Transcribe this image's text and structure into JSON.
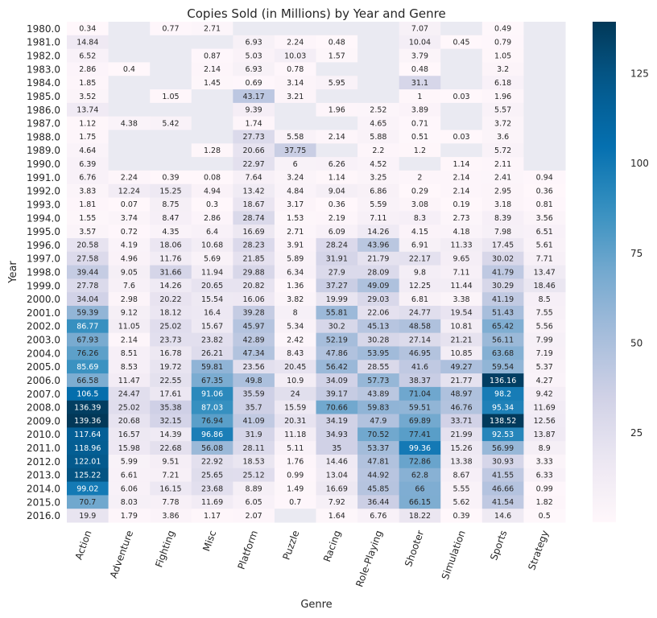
{
  "chart_data": {
    "type": "heatmap",
    "title": "Copies Sold (in Millions) by Year and Genre",
    "xlabel": "Genre",
    "ylabel": "Year",
    "x": [
      "Action",
      "Adventure",
      "Fighting",
      "Misc",
      "Platform",
      "Puzzle",
      "Racing",
      "Role-Playing",
      "Shooter",
      "Simulation",
      "Sports",
      "Strategy"
    ],
    "y": [
      "1980.0",
      "1981.0",
      "1982.0",
      "1983.0",
      "1984.0",
      "1985.0",
      "1986.0",
      "1987.0",
      "1988.0",
      "1989.0",
      "1990.0",
      "1991.0",
      "1992.0",
      "1993.0",
      "1994.0",
      "1995.0",
      "1996.0",
      "1997.0",
      "1998.0",
      "1999.0",
      "2000.0",
      "2001.0",
      "2002.0",
      "2003.0",
      "2004.0",
      "2005.0",
      "2006.0",
      "2007.0",
      "2008.0",
      "2009.0",
      "2010.0",
      "2011.0",
      "2012.0",
      "2013.0",
      "2014.0",
      "2015.0",
      "2016.0"
    ],
    "values": [
      [
        "0.34",
        null,
        "0.77",
        "2.71",
        null,
        null,
        null,
        null,
        "7.07",
        null,
        "0.49",
        null
      ],
      [
        "14.84",
        null,
        null,
        null,
        "6.93",
        "2.24",
        "0.48",
        null,
        "10.04",
        "0.45",
        "0.79",
        null
      ],
      [
        "6.52",
        null,
        null,
        "0.87",
        "5.03",
        "10.03",
        "1.57",
        null,
        "3.79",
        null,
        "1.05",
        null
      ],
      [
        "2.86",
        "0.4",
        null,
        "2.14",
        "6.93",
        "0.78",
        null,
        null,
        "0.48",
        null,
        "3.2",
        null
      ],
      [
        "1.85",
        null,
        null,
        "1.45",
        "0.69",
        "3.14",
        "5.95",
        null,
        "31.1",
        null,
        "6.18",
        null
      ],
      [
        "3.52",
        null,
        "1.05",
        null,
        "43.17",
        "3.21",
        null,
        null,
        "1",
        "0.03",
        "1.96",
        null
      ],
      [
        "13.74",
        null,
        null,
        null,
        "9.39",
        null,
        "1.96",
        "2.52",
        "3.89",
        null,
        "5.57",
        null
      ],
      [
        "1.12",
        "4.38",
        "5.42",
        null,
        "1.74",
        null,
        null,
        "4.65",
        "0.71",
        null,
        "3.72",
        null
      ],
      [
        "1.75",
        null,
        null,
        null,
        "27.73",
        "5.58",
        "2.14",
        "5.88",
        "0.51",
        "0.03",
        "3.6",
        null
      ],
      [
        "4.64",
        null,
        null,
        "1.28",
        "20.66",
        "37.75",
        null,
        "2.2",
        "1.2",
        null,
        "5.72",
        null
      ],
      [
        "6.39",
        null,
        null,
        null,
        "22.97",
        "6",
        "6.26",
        "4.52",
        null,
        "1.14",
        "2.11",
        null
      ],
      [
        "6.76",
        "2.24",
        "0.39",
        "0.08",
        "7.64",
        "3.24",
        "1.14",
        "3.25",
        "2",
        "2.14",
        "2.41",
        "0.94"
      ],
      [
        "3.83",
        "12.24",
        "15.25",
        "4.94",
        "13.42",
        "4.84",
        "9.04",
        "6.86",
        "0.29",
        "2.14",
        "2.95",
        "0.36"
      ],
      [
        "1.81",
        "0.07",
        "8.75",
        "0.3",
        "18.67",
        "3.17",
        "0.36",
        "5.59",
        "3.08",
        "0.19",
        "3.18",
        "0.81"
      ],
      [
        "1.55",
        "3.74",
        "8.47",
        "2.86",
        "28.74",
        "1.53",
        "2.19",
        "7.11",
        "8.3",
        "2.73",
        "8.39",
        "3.56"
      ],
      [
        "3.57",
        "0.72",
        "4.35",
        "6.4",
        "16.69",
        "2.71",
        "6.09",
        "14.26",
        "4.15",
        "4.18",
        "7.98",
        "6.51"
      ],
      [
        "20.58",
        "4.19",
        "18.06",
        "10.68",
        "28.23",
        "3.91",
        "28.24",
        "43.96",
        "6.91",
        "11.33",
        "17.45",
        "5.61"
      ],
      [
        "27.58",
        "4.96",
        "11.76",
        "5.69",
        "21.85",
        "5.89",
        "31.91",
        "21.79",
        "22.17",
        "9.65",
        "30.02",
        "7.71"
      ],
      [
        "39.44",
        "9.05",
        "31.66",
        "11.94",
        "29.88",
        "6.34",
        "27.9",
        "28.09",
        "9.8",
        "7.11",
        "41.79",
        "13.47"
      ],
      [
        "27.78",
        "7.6",
        "14.26",
        "20.65",
        "20.82",
        "1.36",
        "37.27",
        "49.09",
        "12.25",
        "11.44",
        "30.29",
        "18.46"
      ],
      [
        "34.04",
        "2.98",
        "20.22",
        "15.54",
        "16.06",
        "3.82",
        "19.99",
        "29.03",
        "6.81",
        "3.38",
        "41.19",
        "8.5"
      ],
      [
        "59.39",
        "9.12",
        "18.12",
        "16.4",
        "39.28",
        "8",
        "55.81",
        "22.06",
        "24.77",
        "19.54",
        "51.43",
        "7.55"
      ],
      [
        "86.77",
        "11.05",
        "25.02",
        "15.67",
        "45.97",
        "5.34",
        "30.2",
        "45.13",
        "48.58",
        "10.81",
        "65.42",
        "5.56"
      ],
      [
        "67.93",
        "2.14",
        "23.73",
        "23.82",
        "42.89",
        "2.42",
        "52.19",
        "30.28",
        "27.14",
        "21.21",
        "56.11",
        "7.99"
      ],
      [
        "76.26",
        "8.51",
        "16.78",
        "26.21",
        "47.34",
        "8.43",
        "47.86",
        "53.95",
        "46.95",
        "10.85",
        "63.68",
        "7.19"
      ],
      [
        "85.69",
        "8.53",
        "19.72",
        "59.81",
        "23.56",
        "20.45",
        "56.42",
        "28.55",
        "41.6",
        "49.27",
        "59.54",
        "5.37"
      ],
      [
        "66.58",
        "11.47",
        "22.55",
        "67.35",
        "49.8",
        "10.9",
        "34.09",
        "57.73",
        "38.37",
        "21.77",
        "136.16",
        "4.27"
      ],
      [
        "106.5",
        "24.47",
        "17.61",
        "91.06",
        "35.59",
        "24",
        "39.17",
        "43.89",
        "71.04",
        "48.97",
        "98.2",
        "9.42"
      ],
      [
        "136.39",
        "25.02",
        "35.38",
        "87.03",
        "35.7",
        "15.59",
        "70.66",
        "59.83",
        "59.51",
        "46.76",
        "95.34",
        "11.69"
      ],
      [
        "139.36",
        "20.68",
        "32.15",
        "76.94",
        "41.09",
        "20.31",
        "34.19",
        "47.9",
        "69.89",
        "33.71",
        "138.52",
        "12.56"
      ],
      [
        "117.64",
        "16.57",
        "14.39",
        "96.86",
        "31.9",
        "11.18",
        "34.93",
        "70.52",
        "77.41",
        "21.99",
        "92.53",
        "13.87"
      ],
      [
        "118.96",
        "15.98",
        "22.68",
        "56.08",
        "28.11",
        "5.11",
        "35",
        "53.37",
        "99.36",
        "15.26",
        "56.99",
        "8.9"
      ],
      [
        "122.01",
        "5.99",
        "9.51",
        "22.92",
        "18.53",
        "1.76",
        "14.46",
        "47.81",
        "72.86",
        "13.38",
        "30.93",
        "3.33"
      ],
      [
        "125.22",
        "6.61",
        "7.21",
        "25.65",
        "25.12",
        "0.99",
        "13.04",
        "44.92",
        "62.8",
        "8.67",
        "41.55",
        "6.33"
      ],
      [
        "99.02",
        "6.06",
        "16.15",
        "23.68",
        "8.89",
        "1.49",
        "16.69",
        "45.85",
        "66",
        "5.55",
        "46.66",
        "0.99"
      ],
      [
        "70.7",
        "8.03",
        "7.78",
        "11.69",
        "6.05",
        "0.7",
        "7.92",
        "36.44",
        "66.15",
        "5.62",
        "41.54",
        "1.82"
      ],
      [
        "19.9",
        "1.79",
        "3.86",
        "1.17",
        "2.07",
        null,
        "1.64",
        "6.76",
        "18.22",
        "0.39",
        "14.6",
        "0.5"
      ]
    ],
    "colorbar": {
      "ticks": [
        "25",
        "50",
        "75",
        "100",
        "125"
      ],
      "vmin": 0.03,
      "vmax": 139.36
    },
    "colormap": "PuBu",
    "missing_color": "#eaeaf2",
    "grid": false
  }
}
